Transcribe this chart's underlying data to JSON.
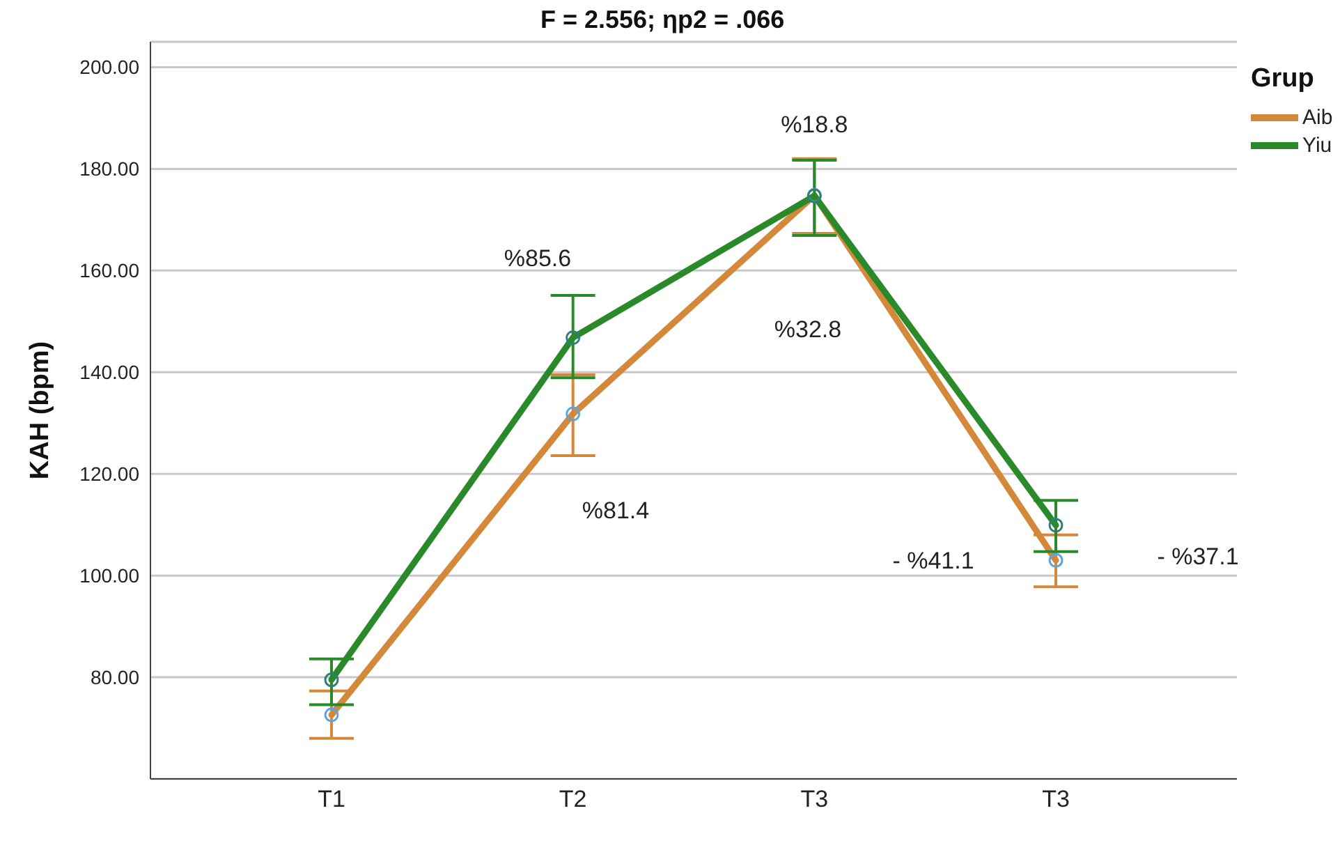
{
  "chart_data": {
    "type": "line",
    "title": "F = 2.556; ηp2 = .066",
    "ylabel": "KAH (bpm)",
    "legend_title": "Grup",
    "categories": [
      "T1",
      "T2",
      "T3",
      "T3"
    ],
    "series": [
      {
        "name": "Aib",
        "color": "#d4883a",
        "values": [
          72.6,
          131.8,
          174.8,
          103.0
        ],
        "errors": [
          [
            68.0,
            77.3
          ],
          [
            123.6,
            139.5
          ],
          [
            167.3,
            182.0
          ],
          [
            97.8,
            108.0
          ]
        ]
      },
      {
        "name": "Yiu",
        "color": "#2a8a2a",
        "values": [
          79.5,
          146.8,
          174.7,
          109.9
        ],
        "errors": [
          [
            74.6,
            83.6
          ],
          [
            138.9,
            155.1
          ],
          [
            166.9,
            181.7
          ],
          [
            104.7,
            114.8
          ]
        ]
      }
    ],
    "annotations": [
      "%85.6",
      "%81.4",
      {
        "text": "%18.8",
        "x": "T3",
        "y": 174.8
      },
      "%32.8",
      "- %41.1",
      "- %37.1"
    ],
    "ylim": [
      60,
      205
    ],
    "yticks": [
      {
        "value": 80,
        "label": "80.00"
      },
      {
        "value": 100,
        "label": "100.00"
      },
      {
        "value": 120,
        "label": "120.00"
      },
      {
        "value": 140,
        "label": "140.00"
      },
      {
        "value": 160,
        "label": "160.00"
      },
      {
        "value": 180,
        "label": "180.00"
      },
      {
        "value": 200,
        "label": "200.00"
      }
    ],
    "grid": "y",
    "legend": "top right",
    "marker": "circle",
    "line_style": "solid"
  }
}
